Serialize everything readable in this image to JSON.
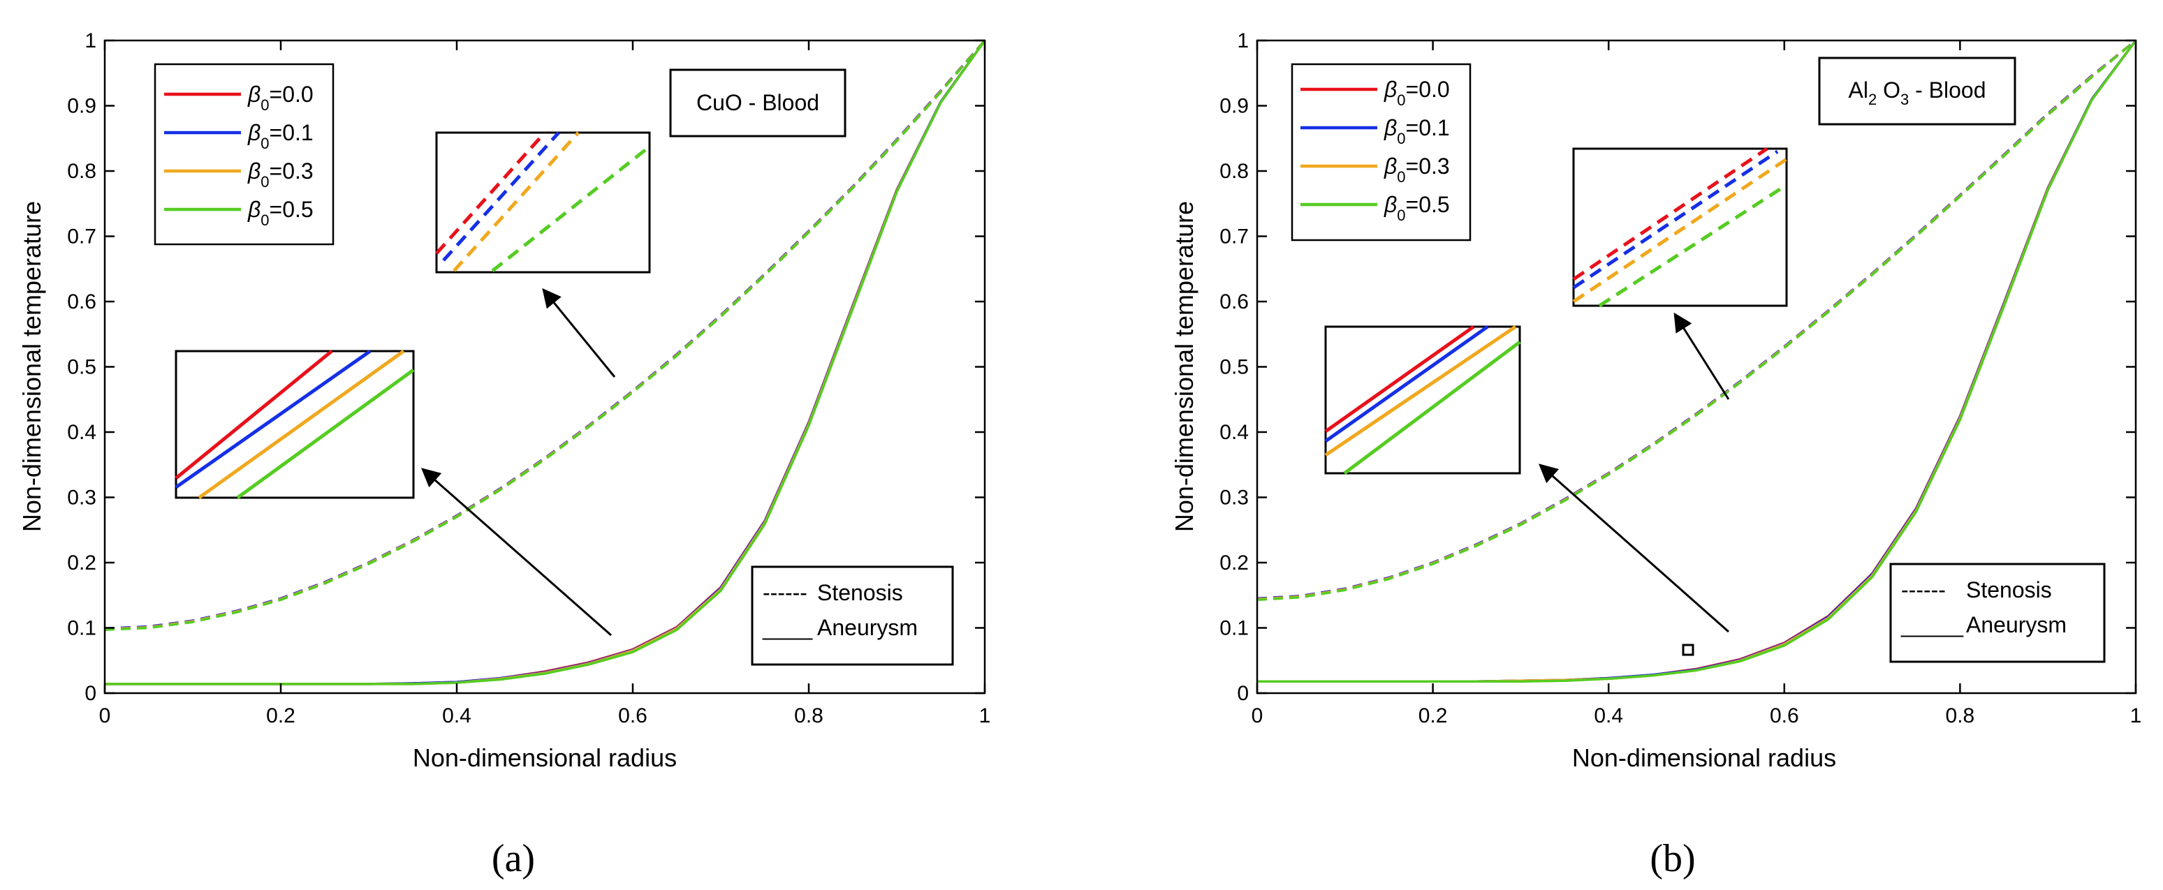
{
  "colors": {
    "beta_0_0": "#e8111b",
    "beta_0_1": "#1530e6",
    "beta_0_3": "#f0a81e",
    "beta_0_5": "#55cc22"
  },
  "chart_data": [
    {
      "type": "line",
      "panel": "a",
      "caption": "(a)",
      "title": "CuO - Blood",
      "xlabel": "Non-dimensional radius",
      "ylabel": "Non-dimensional temperature",
      "xlim": [
        0,
        1
      ],
      "ylim": [
        0,
        1
      ],
      "xticks": [
        "0",
        "0.2",
        "0.4",
        "0.6",
        "0.8",
        "1"
      ],
      "yticks": [
        "0",
        "0.1",
        "0.2",
        "0.3",
        "0.4",
        "0.5",
        "0.6",
        "0.7",
        "0.8",
        "0.9",
        "1"
      ],
      "legend_symbol": "β",
      "legend_sub": "0",
      "legend_values": [
        "=0.0",
        "=0.1",
        "=0.3",
        "=0.5"
      ],
      "style_legend": [
        {
          "line": "------",
          "label": "Stenosis"
        },
        {
          "line": "____",
          "label": "Aneurysm"
        }
      ],
      "x": [
        0,
        0.05,
        0.1,
        0.15,
        0.2,
        0.25,
        0.3,
        0.35,
        0.4,
        0.45,
        0.5,
        0.55,
        0.6,
        0.65,
        0.7,
        0.75,
        0.8,
        0.85,
        0.9,
        0.95,
        1
      ],
      "series": [
        {
          "name": "Stenosis β0=0.0",
          "style": "dashed",
          "color": "beta_0_0",
          "values": [
            0.099,
            0.102,
            0.111,
            0.126,
            0.145,
            0.17,
            0.2,
            0.234,
            0.272,
            0.314,
            0.36,
            0.41,
            0.463,
            0.519,
            0.579,
            0.642,
            0.708,
            0.776,
            0.848,
            0.923,
            1.0
          ]
        },
        {
          "name": "Stenosis β0=0.1",
          "style": "dashed",
          "color": "beta_0_1",
          "values": [
            0.099,
            0.102,
            0.111,
            0.126,
            0.145,
            0.17,
            0.2,
            0.234,
            0.272,
            0.314,
            0.36,
            0.41,
            0.463,
            0.519,
            0.579,
            0.642,
            0.708,
            0.776,
            0.848,
            0.923,
            1.0
          ]
        },
        {
          "name": "Stenosis β0=0.3",
          "style": "dashed",
          "color": "beta_0_3",
          "values": [
            0.098,
            0.101,
            0.11,
            0.125,
            0.144,
            0.169,
            0.199,
            0.233,
            0.271,
            0.313,
            0.359,
            0.409,
            0.462,
            0.518,
            0.578,
            0.641,
            0.707,
            0.775,
            0.847,
            0.922,
            1.0
          ]
        },
        {
          "name": "Stenosis β0=0.5",
          "style": "dashed",
          "color": "beta_0_5",
          "values": [
            0.097,
            0.1,
            0.109,
            0.124,
            0.143,
            0.168,
            0.198,
            0.232,
            0.27,
            0.312,
            0.358,
            0.408,
            0.461,
            0.517,
            0.577,
            0.64,
            0.706,
            0.774,
            0.846,
            0.921,
            1.0
          ]
        },
        {
          "name": "Aneurysm β0=0.0",
          "style": "solid",
          "color": "beta_0_0",
          "values": [
            0.014,
            0.014,
            0.014,
            0.014,
            0.014,
            0.014,
            0.014,
            0.015,
            0.017,
            0.023,
            0.033,
            0.047,
            0.067,
            0.101,
            0.162,
            0.264,
            0.415,
            0.594,
            0.771,
            0.906,
            1.0
          ]
        },
        {
          "name": "Aneurysm β0=0.1",
          "style": "solid",
          "color": "beta_0_1",
          "values": [
            0.014,
            0.014,
            0.014,
            0.014,
            0.014,
            0.014,
            0.014,
            0.015,
            0.017,
            0.023,
            0.032,
            0.046,
            0.066,
            0.1,
            0.161,
            0.263,
            0.414,
            0.593,
            0.77,
            0.906,
            1.0
          ]
        },
        {
          "name": "Aneurysm β0=0.3",
          "style": "solid",
          "color": "beta_0_3",
          "values": [
            0.014,
            0.014,
            0.014,
            0.014,
            0.014,
            0.014,
            0.014,
            0.014,
            0.016,
            0.022,
            0.031,
            0.045,
            0.065,
            0.099,
            0.159,
            0.261,
            0.412,
            0.591,
            0.769,
            0.905,
            1.0
          ]
        },
        {
          "name": "Aneurysm β0=0.5",
          "style": "solid",
          "color": "beta_0_5",
          "values": [
            0.014,
            0.014,
            0.014,
            0.014,
            0.014,
            0.014,
            0.014,
            0.014,
            0.016,
            0.021,
            0.03,
            0.044,
            0.063,
            0.097,
            0.157,
            0.259,
            0.41,
            0.589,
            0.768,
            0.905,
            1.0
          ]
        }
      ]
    },
    {
      "type": "line",
      "panel": "b",
      "caption": "(b)",
      "title_parts": [
        "Al",
        "2",
        " O",
        "3",
        " - Blood"
      ],
      "xlabel": "Non-dimensional radius",
      "ylabel": "Non-dimensional temperature",
      "xlim": [
        0,
        1
      ],
      "ylim": [
        0,
        1
      ],
      "xticks": [
        "0",
        "0.2",
        "0.4",
        "0.6",
        "0.8",
        "1"
      ],
      "yticks": [
        "0",
        "0.1",
        "0.2",
        "0.3",
        "0.4",
        "0.5",
        "0.6",
        "0.7",
        "0.8",
        "0.9",
        "1"
      ],
      "legend_symbol": "β",
      "legend_sub": "0",
      "legend_values": [
        "=0.0",
        "=0.1",
        "=0.3",
        "=0.5"
      ],
      "style_legend": [
        {
          "line": "------",
          "label": "Stenosis"
        },
        {
          "line": "_____",
          "label": "Aneurysm"
        }
      ],
      "x": [
        0,
        0.05,
        0.1,
        0.15,
        0.2,
        0.25,
        0.3,
        0.35,
        0.4,
        0.45,
        0.5,
        0.55,
        0.6,
        0.65,
        0.7,
        0.75,
        0.8,
        0.85,
        0.9,
        0.95,
        1
      ],
      "series": [
        {
          "name": "Stenosis β0=0.0",
          "style": "dashed",
          "color": "beta_0_0",
          "values": [
            0.145,
            0.149,
            0.16,
            0.177,
            0.2,
            0.228,
            0.26,
            0.297,
            0.337,
            0.381,
            0.428,
            0.478,
            0.531,
            0.586,
            0.643,
            0.702,
            0.763,
            0.825,
            0.888,
            0.946,
            1.0
          ]
        },
        {
          "name": "Stenosis β0=0.1",
          "style": "dashed",
          "color": "beta_0_1",
          "values": [
            0.145,
            0.149,
            0.16,
            0.177,
            0.2,
            0.228,
            0.26,
            0.297,
            0.337,
            0.381,
            0.428,
            0.478,
            0.531,
            0.586,
            0.643,
            0.702,
            0.763,
            0.825,
            0.888,
            0.946,
            1.0
          ]
        },
        {
          "name": "Stenosis β0=0.3",
          "style": "dashed",
          "color": "beta_0_3",
          "values": [
            0.144,
            0.148,
            0.159,
            0.176,
            0.199,
            0.227,
            0.259,
            0.296,
            0.336,
            0.38,
            0.427,
            0.477,
            0.53,
            0.585,
            0.642,
            0.701,
            0.762,
            0.824,
            0.887,
            0.945,
            1.0
          ]
        },
        {
          "name": "Stenosis β0=0.5",
          "style": "dashed",
          "color": "beta_0_5",
          "values": [
            0.143,
            0.147,
            0.158,
            0.175,
            0.198,
            0.226,
            0.258,
            0.295,
            0.335,
            0.379,
            0.426,
            0.476,
            0.529,
            0.584,
            0.641,
            0.7,
            0.761,
            0.823,
            0.886,
            0.944,
            1.0
          ]
        },
        {
          "name": "Aneurysm β0=0.0",
          "style": "solid",
          "color": "beta_0_0",
          "values": [
            0.018,
            0.018,
            0.018,
            0.018,
            0.018,
            0.018,
            0.019,
            0.02,
            0.023,
            0.028,
            0.037,
            0.052,
            0.077,
            0.118,
            0.183,
            0.283,
            0.424,
            0.598,
            0.774,
            0.91,
            1.0
          ]
        },
        {
          "name": "Aneurysm β0=0.1",
          "style": "solid",
          "color": "beta_0_1",
          "values": [
            0.018,
            0.018,
            0.018,
            0.018,
            0.018,
            0.018,
            0.019,
            0.02,
            0.023,
            0.028,
            0.036,
            0.051,
            0.076,
            0.117,
            0.182,
            0.282,
            0.423,
            0.597,
            0.773,
            0.91,
            1.0
          ]
        },
        {
          "name": "Aneurysm β0=0.3",
          "style": "solid",
          "color": "beta_0_3",
          "values": [
            0.018,
            0.018,
            0.018,
            0.018,
            0.018,
            0.018,
            0.019,
            0.02,
            0.022,
            0.027,
            0.035,
            0.05,
            0.075,
            0.115,
            0.18,
            0.28,
            0.421,
            0.595,
            0.772,
            0.909,
            1.0
          ]
        },
        {
          "name": "Aneurysm β0=0.5",
          "style": "solid",
          "color": "beta_0_5",
          "values": [
            0.018,
            0.018,
            0.018,
            0.018,
            0.018,
            0.018,
            0.018,
            0.019,
            0.022,
            0.027,
            0.035,
            0.049,
            0.073,
            0.113,
            0.178,
            0.278,
            0.419,
            0.593,
            0.771,
            0.909,
            1.0
          ]
        }
      ]
    }
  ]
}
